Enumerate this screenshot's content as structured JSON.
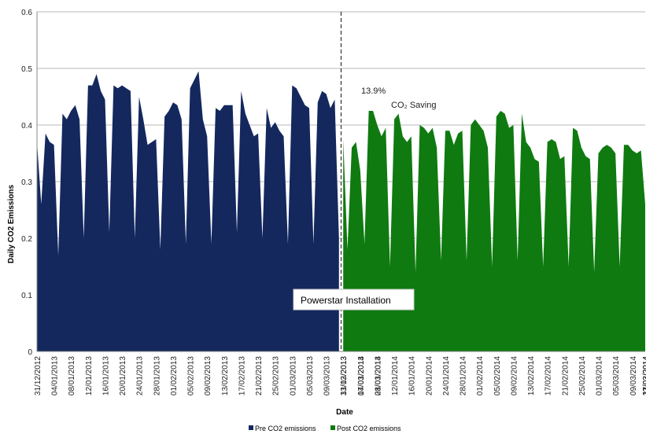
{
  "chart_data": {
    "type": "area",
    "ylabel": "Daily CO2  Emissions",
    "xlabel": "Date",
    "ylim": [
      0,
      0.6
    ],
    "yticks": [
      "0",
      "0.1",
      "0.2",
      "0.3",
      "0.4",
      "0.5",
      "0.6"
    ],
    "grid": "horizontal",
    "legend_position": "bottom",
    "x_tick_labels": [
      "31/12/2012",
      "04/01/2013",
      "08/01/2013",
      "12/01/2013",
      "16/01/2013",
      "20/01/2013",
      "24/01/2013",
      "28/01/2013",
      "01/02/2013",
      "05/02/2013",
      "09/02/2013",
      "13/02/2013",
      "17/02/2013",
      "21/02/2013",
      "25/02/2013",
      "01/03/2013",
      "05/03/2013",
      "09/03/2013",
      "13/03/2013",
      "17/03/2013",
      "21/03/2013",
      "31/12/2013",
      "04/01/2014",
      "08/01/2014",
      "12/01/2014",
      "16/01/2014",
      "20/01/2014",
      "24/01/2014",
      "28/01/2014",
      "01/02/2014",
      "05/02/2014",
      "09/02/2014",
      "13/02/2014",
      "17/02/2014",
      "21/02/2014",
      "25/02/2014",
      "01/03/2014",
      "05/03/2014",
      "09/03/2014",
      "13/03/2014",
      "17/03/2014",
      "21/03/2014"
    ],
    "series": [
      {
        "name": "Pre CO2 emissions",
        "color": "#14285e",
        "start_date": "31/12/2012",
        "values": [
          0.37,
          0.26,
          0.385,
          0.37,
          0.365,
          0.17,
          0.42,
          0.41,
          0.425,
          0.435,
          0.41,
          0.2,
          0.47,
          0.47,
          0.49,
          0.46,
          0.445,
          0.21,
          0.47,
          0.465,
          0.47,
          0.465,
          0.46,
          0.2,
          0.45,
          0.41,
          0.365,
          0.37,
          0.375,
          0.18,
          0.415,
          0.425,
          0.44,
          0.435,
          0.41,
          0.19,
          0.465,
          0.48,
          0.495,
          0.41,
          0.38,
          0.19,
          0.43,
          0.425,
          0.435,
          0.435,
          0.435,
          0.21,
          0.46,
          0.42,
          0.4,
          0.38,
          0.385,
          0.2,
          0.43,
          0.395,
          0.405,
          0.39,
          0.38,
          0.19,
          0.47,
          0.465,
          0.45,
          0.435,
          0.43,
          0.19,
          0.44,
          0.46,
          0.455,
          0.43,
          0.445,
          0.2
        ]
      },
      {
        "name": "Post CO2 emissions",
        "color": "#0f7a10",
        "start_date": "31/12/2013",
        "values": [
          0.375,
          0.18,
          0.36,
          0.37,
          0.32,
          0.19,
          0.425,
          0.425,
          0.4,
          0.38,
          0.395,
          0.15,
          0.41,
          0.42,
          0.38,
          0.37,
          0.38,
          0.14,
          0.4,
          0.395,
          0.385,
          0.395,
          0.36,
          0.16,
          0.39,
          0.39,
          0.365,
          0.385,
          0.39,
          0.16,
          0.4,
          0.41,
          0.4,
          0.39,
          0.36,
          0.15,
          0.415,
          0.425,
          0.42,
          0.395,
          0.4,
          0.16,
          0.42,
          0.37,
          0.36,
          0.34,
          0.335,
          0.15,
          0.37,
          0.375,
          0.37,
          0.34,
          0.345,
          0.15,
          0.395,
          0.39,
          0.36,
          0.345,
          0.34,
          0.14,
          0.35,
          0.36,
          0.365,
          0.36,
          0.35,
          0.15,
          0.365,
          0.365,
          0.355,
          0.35,
          0.355,
          0.26
        ]
      }
    ],
    "annotations": {
      "saving_percent": "13.9%",
      "saving_label": "CO₂ Saving",
      "installation_label": "Powerstar Installation"
    }
  }
}
